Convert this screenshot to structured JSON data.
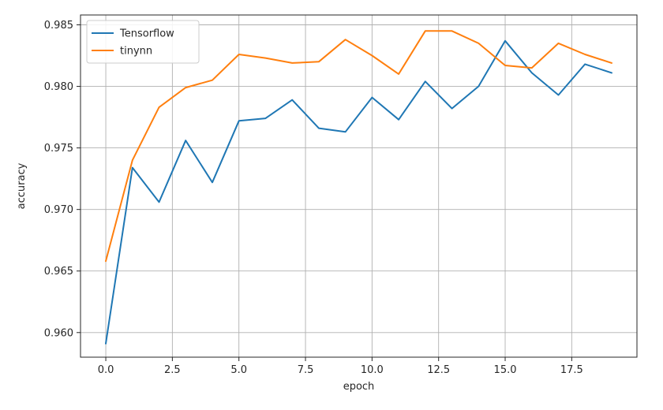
{
  "chart_data": {
    "type": "line",
    "xlabel": "epoch",
    "ylabel": "accuracy",
    "xlim": [
      -0.95,
      19.95
    ],
    "ylim": [
      0.958,
      0.9858
    ],
    "xticks": [
      0,
      2.5,
      5,
      7.5,
      10,
      12.5,
      15,
      17.5
    ],
    "xtick_labels": [
      "0.0",
      "2.5",
      "5.0",
      "7.5",
      "10.0",
      "12.5",
      "15.0",
      "17.5"
    ],
    "yticks": [
      0.96,
      0.965,
      0.97,
      0.975,
      0.98,
      0.985
    ],
    "ytick_labels": [
      "0.960",
      "0.965",
      "0.970",
      "0.975",
      "0.980",
      "0.985"
    ],
    "grid": true,
    "legend_position": "top-left",
    "x": [
      0,
      1,
      2,
      3,
      4,
      5,
      6,
      7,
      8,
      9,
      10,
      11,
      12,
      13,
      14,
      15,
      16,
      17,
      18,
      19
    ],
    "series": [
      {
        "name": "Tensorflow",
        "color": "#1f77b4",
        "values": [
          0.9591,
          0.9734,
          0.9706,
          0.9756,
          0.9722,
          0.9772,
          0.9774,
          0.9789,
          0.9766,
          0.9763,
          0.9791,
          0.9773,
          0.9804,
          0.9782,
          0.98,
          0.9837,
          0.9811,
          0.9793,
          0.9818,
          0.9811
        ]
      },
      {
        "name": "tinynn",
        "color": "#ff7f0e",
        "values": [
          0.9658,
          0.974,
          0.9783,
          0.9799,
          0.9805,
          0.9826,
          0.9823,
          0.9819,
          0.982,
          0.9838,
          0.9825,
          0.981,
          0.9845,
          0.9845,
          0.9835,
          0.9817,
          0.9815,
          0.9835,
          0.9826,
          0.9819
        ]
      }
    ]
  }
}
